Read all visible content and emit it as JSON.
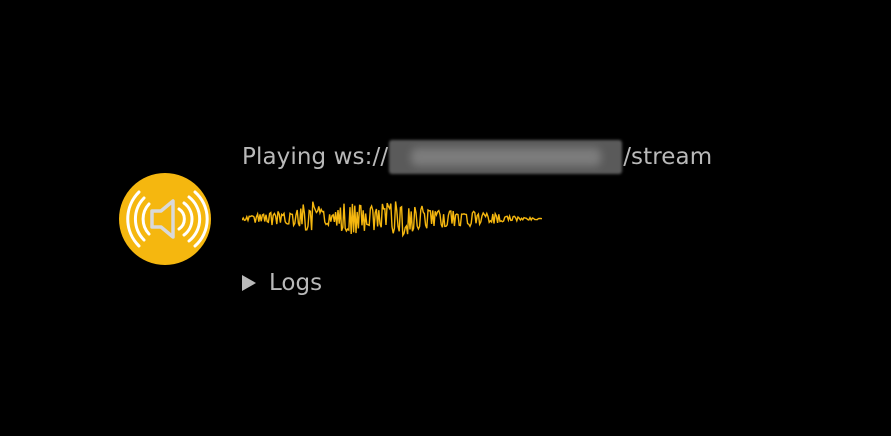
{
  "player": {
    "status_prefix": "Playing ws://",
    "status_suffix": "/stream"
  },
  "logs": {
    "label": "Logs"
  },
  "icons": {
    "speaker": "speaker-sound-icon",
    "expand": "triangle-right-icon"
  },
  "colors": {
    "accent": "#f5b70f",
    "text": "#b9b9b9",
    "background": "#000000"
  }
}
